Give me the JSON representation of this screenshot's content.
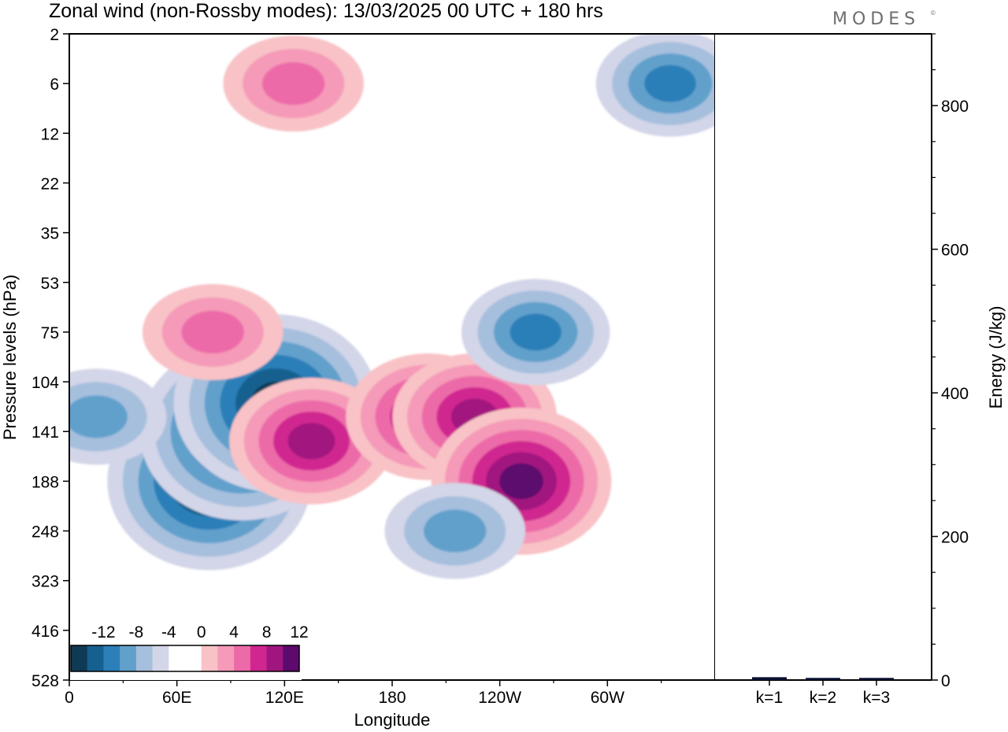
{
  "title": "Zonal wind (non-Rossby modes):  13/03/2025  00 UTC  + 180 hrs",
  "logo": "MODES",
  "logo_mark": "©",
  "chart_data": [
    {
      "type": "heatmap",
      "title": "Zonal wind (non-Rossby modes):  13/03/2025  00 UTC  + 180 hrs",
      "xlabel": "Longitude",
      "ylabel": "Pressure levels (hPa)",
      "x_ticks": [
        "0",
        "60E",
        "120E",
        "180",
        "120W",
        "60W"
      ],
      "x_tick_values": [
        0,
        60,
        120,
        180,
        240,
        300
      ],
      "xlim": [
        0,
        360
      ],
      "y_ticks": [
        "2",
        "6",
        "12",
        "22",
        "35",
        "53",
        "75",
        "104",
        "141",
        "188",
        "248",
        "323",
        "416",
        "528"
      ],
      "colorbar": {
        "labels": [
          "-12",
          "-8",
          "-4",
          "0",
          "4",
          "8",
          "12"
        ],
        "colors": [
          "#0f3a55",
          "#16608f",
          "#2c7fb8",
          "#62a0cc",
          "#a6bfdd",
          "#d3d5e8",
          "#ffffff",
          "#ffffff",
          "#f8c2c6",
          "#f59ab8",
          "#ec6aa8",
          "#d0268f",
          "#a1157f",
          "#5c0a6d"
        ]
      },
      "features": [
        {
          "sign": "negative",
          "peak": -14,
          "lon": 78,
          "level": 188
        },
        {
          "sign": "negative",
          "peak": -14,
          "lon": 96,
          "level": 141
        },
        {
          "sign": "negative",
          "peak": -14,
          "lon": 115,
          "level": 120
        },
        {
          "sign": "positive",
          "peak": 9,
          "lon": 135,
          "level": 150
        },
        {
          "sign": "positive",
          "peak": 9,
          "lon": 200,
          "level": 130
        },
        {
          "sign": "positive",
          "peak": 9,
          "lon": 226,
          "level": 130
        },
        {
          "sign": "positive",
          "peak": 11,
          "lon": 252,
          "level": 188
        },
        {
          "sign": "positive",
          "peak": 6,
          "lon": 80,
          "level": 75
        },
        {
          "sign": "positive",
          "peak": 6,
          "lon": 125,
          "level": 6
        },
        {
          "sign": "negative",
          "peak": -7,
          "lon": 260,
          "level": 75
        },
        {
          "sign": "negative",
          "peak": -7,
          "lon": 335,
          "level": 6
        },
        {
          "sign": "negative",
          "peak": -6,
          "lon": 15,
          "level": 130
        },
        {
          "sign": "negative",
          "peak": -6,
          "lon": 215,
          "level": 248
        }
      ]
    },
    {
      "type": "bar",
      "categories": [
        "k=1",
        "k=2",
        "k=3"
      ],
      "values": [
        4,
        3,
        3
      ],
      "ylabel": "Energy (J/kg)",
      "ylim": [
        0,
        900
      ],
      "y_ticks": [
        0,
        200,
        400,
        600,
        800
      ],
      "bar_color": "#0b1030"
    }
  ]
}
